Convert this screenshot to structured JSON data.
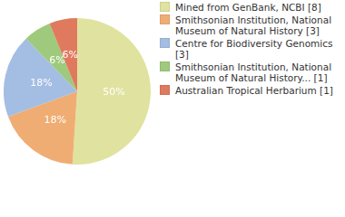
{
  "chart_data": {
    "type": "pie",
    "categories": [
      "Mined from GenBank, NCBI [8]",
      "Smithsonian Institution, National Museum of Natural History [3]",
      "Centre for Biodiversity Genomics [3]",
      "Smithsonian Institution, National Museum of Natural History... [1]",
      "Australian Tropical Herbarium [1]"
    ],
    "values": [
      50,
      18,
      18,
      6,
      6
    ],
    "value_labels": [
      "50%",
      "18%",
      "18%",
      "6%",
      "6%"
    ],
    "data_labels": true,
    "colors": [
      "#dfe39f",
      "#f0ad73",
      "#a4bde3",
      "#9fc97c",
      "#e07a5f"
    ],
    "legend": "right"
  }
}
